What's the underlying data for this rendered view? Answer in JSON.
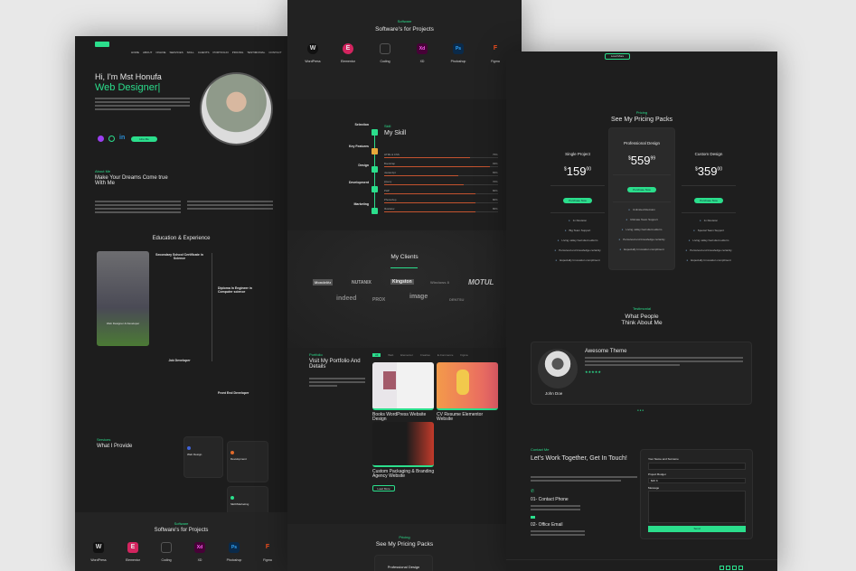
{
  "accent": "#2bde8c",
  "hero": {
    "nav": [
      "HOME",
      "ABOUT",
      "ONLINE",
      "SERVICES",
      "SKILL",
      "CLIENTS",
      "PORTFOLIO",
      "PRICING",
      "TESTIMONIAL",
      "CONTACT"
    ],
    "greeting": "Hi, I'm Mst Honufa",
    "role": "Web Designer|",
    "cta": "Hire Me"
  },
  "about": {
    "label": "About Me",
    "title": "Make Your Dreams Come true With Me"
  },
  "education": {
    "title": "Education & Experience",
    "items": [
      {
        "title": "Secondary School Certificate in Science"
      },
      {
        "title": "Diploma In Engineer in Computer science"
      },
      {
        "title": "Job Developer"
      },
      {
        "title": "Front End Developer"
      }
    ],
    "photo_caption": "Web Designer & Developer"
  },
  "services": {
    "label": "Services",
    "title": "What I Provide",
    "items": [
      "Web Design",
      "Development",
      "SEO/Marketing"
    ],
    "colors": [
      "#3f62d8",
      "#e06a2b",
      "#2bde8c"
    ]
  },
  "software": {
    "label": "Software",
    "title": "Software's for Projects",
    "items": [
      {
        "name": "WordPress",
        "glyph": "W",
        "color": "#111"
      },
      {
        "name": "Elementor",
        "glyph": "E",
        "color": "#d3245f"
      },
      {
        "name": "Coding",
        "glyph": "▭",
        "color": "#222"
      },
      {
        "name": "XD",
        "glyph": "Xd",
        "color": "#470137"
      },
      {
        "name": "Photoshop",
        "glyph": "Ps",
        "color": "#0a2a4a"
      },
      {
        "name": "Figma",
        "glyph": "F",
        "color": "#1d1d1d"
      }
    ]
  },
  "process": {
    "steps": [
      "Selection",
      "Key Features",
      "Design",
      "Development",
      "Marketing"
    ]
  },
  "skill": {
    "label": "Skill",
    "title": "My Skill",
    "bars": [
      {
        "name": "HTML & CSS",
        "value": 75
      },
      {
        "name": "Bootstrap",
        "value": 93
      },
      {
        "name": "Javascript",
        "value": 65
      },
      {
        "name": "jQuery",
        "value": 70
      },
      {
        "name": "PHP",
        "value": 80
      },
      {
        "name": "Photoshop",
        "value": 80
      },
      {
        "name": "Illustrator",
        "value": 80
      }
    ]
  },
  "clients": {
    "title": "My Clients",
    "logos": [
      "Mondelēz",
      "NUTANIX",
      "Kingston",
      "Windows 8",
      "MOTUL",
      "indeed",
      "PROX",
      "image",
      "DENTSU"
    ]
  },
  "portfolio": {
    "label": "Portfolio",
    "title": "Visit My Portfolio And Details",
    "filters": [
      "All",
      "Web",
      "Elementor",
      "Creative",
      "E-Commerce",
      "Figma"
    ],
    "items": [
      "Books WordPress Website Design",
      "CV Resume Elementor Website",
      "Custom Packaging & Branding Agency Website"
    ],
    "more": "Load More"
  },
  "pricing": {
    "label": "Pricing",
    "title": "See My Pricing Packs",
    "plans": [
      {
        "name": "Single Project",
        "price": "159",
        "cents": "00",
        "features": [
          "1x Revision",
          "Big Team Support",
          "Living valley had silent eldorm",
          "Perceived end knowledge certainly",
          "Especially Innovation compliment"
        ]
      },
      {
        "name": "Professional Design",
        "price": "559",
        "cents": "99",
        "features": [
          "Unlimited Revision",
          "Ultimate Team Support",
          "Living valley had silent eldorm",
          "Perceived end knowledge certainly",
          "Especially Innovation compliment"
        ]
      },
      {
        "name": "Custom Design",
        "price": "359",
        "cents": "00",
        "features": [
          "1x Revision",
          "Special Team Support",
          "Living valley had silent eldorm",
          "Perceived end knowledge certainly",
          "Especially Innovation compliment"
        ]
      }
    ],
    "button": "Purchase Now",
    "currency": "$"
  },
  "testimonial": {
    "label": "Testimonial",
    "title": "What People Think About Me",
    "quote_title": "Awesome Theme",
    "name": "John Doe",
    "stars": 5
  },
  "contact": {
    "label": "Contact Me",
    "title": "Let's Work Together, Get In Touch!",
    "phone_title": "01- Contact Phone",
    "email_title": "02- Office Email",
    "form": {
      "name_label": "Your Name and Surname",
      "budget_label": "Project Budget",
      "budget_value": "$20 K",
      "message_label": "Message",
      "send": "Send"
    }
  }
}
